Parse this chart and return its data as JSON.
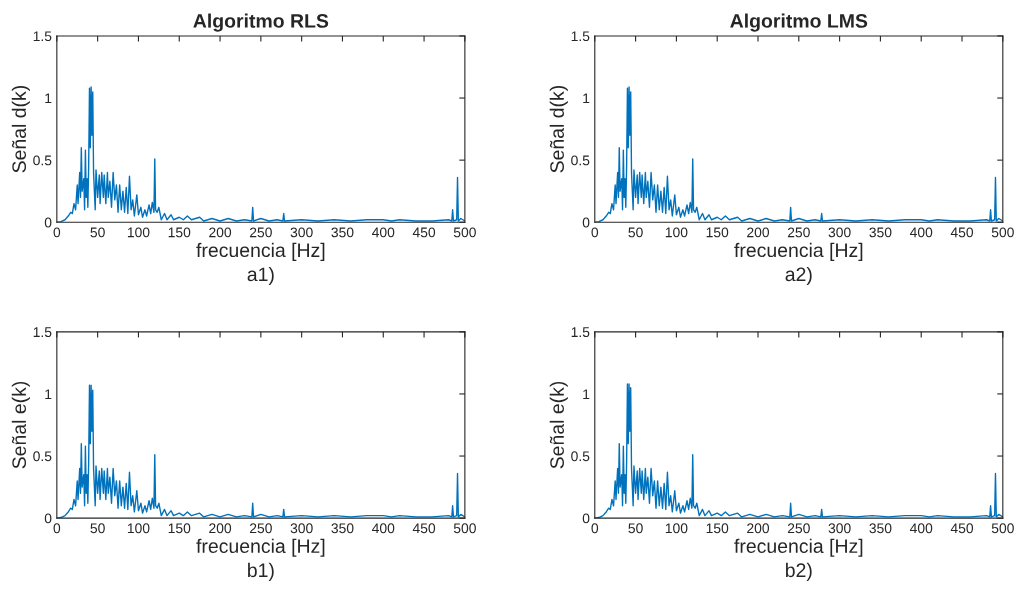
{
  "chart_data": [
    {
      "type": "line",
      "title": "Algoritmo RLS",
      "xlabel": "frecuencia [Hz]",
      "ylabel": "Señal d(k)",
      "annotations": [
        "a1)"
      ],
      "xlim": [
        0,
        500
      ],
      "ylim": [
        0,
        1.5
      ],
      "xticks": [
        0,
        50,
        100,
        150,
        200,
        250,
        300,
        350,
        400,
        450,
        500
      ],
      "yticks": [
        0,
        0.5,
        1,
        1.5
      ],
      "grid": false,
      "series": [
        {
          "color": "#0072bd",
          "x": [
            0,
            5,
            10,
            14,
            17,
            19,
            21,
            23,
            25,
            26,
            28,
            29,
            30,
            31,
            33,
            34,
            35,
            36,
            37,
            38,
            39,
            40,
            41,
            42,
            43,
            44,
            45,
            46,
            47,
            48,
            50,
            52,
            53,
            55,
            57,
            58,
            60,
            62,
            63,
            65,
            67,
            69,
            71,
            73,
            75,
            77,
            79,
            81,
            83,
            85,
            87,
            89,
            91,
            93,
            95,
            98,
            100,
            103,
            105,
            108,
            110,
            113,
            115,
            117,
            119,
            120,
            121,
            123,
            125,
            128,
            132,
            135,
            140,
            143,
            150,
            155,
            160,
            165,
            175,
            180,
            190,
            200,
            210,
            220,
            230,
            239,
            240,
            241,
            250,
            260,
            270,
            277,
            278,
            279,
            300,
            320,
            340,
            360,
            380,
            400,
            410,
            420,
            440,
            460,
            480,
            484,
            485,
            486,
            490,
            491,
            492,
            495,
            500
          ],
          "values": [
            0,
            0.005,
            0.02,
            0.05,
            0.08,
            0.07,
            0.15,
            0.1,
            0.3,
            0.15,
            0.4,
            0.2,
            0.6,
            0.25,
            0.35,
            0.1,
            0.58,
            0.2,
            0.35,
            0.12,
            0.45,
            1.08,
            0.6,
            1.09,
            0.7,
            1.05,
            0.4,
            0.25,
            0.1,
            0.42,
            0.2,
            0.38,
            0.15,
            0.4,
            0.2,
            0.38,
            0.15,
            0.4,
            0.2,
            0.33,
            0.12,
            0.4,
            0.18,
            0.3,
            0.08,
            0.3,
            0.1,
            0.25,
            0.08,
            0.28,
            0.07,
            0.37,
            0.1,
            0.18,
            0.05,
            0.22,
            0.06,
            0.12,
            0.04,
            0.1,
            0.05,
            0.14,
            0.07,
            0.16,
            0.08,
            0.51,
            0.1,
            0.08,
            0.12,
            0.02,
            0.07,
            0.02,
            0.06,
            0.02,
            0.04,
            0.02,
            0.05,
            0.02,
            0.04,
            0.01,
            0.03,
            0.01,
            0.03,
            0.01,
            0.02,
            0.01,
            0.12,
            0.01,
            0.03,
            0.01,
            0.02,
            0.01,
            0.07,
            0.01,
            0.02,
            0.01,
            0.02,
            0.01,
            0.02,
            0.02,
            0.01,
            0.02,
            0.01,
            0.01,
            0.02,
            0.01,
            0.1,
            0.01,
            0.02,
            0.36,
            0.01,
            0.03,
            0.01
          ]
        }
      ]
    },
    {
      "type": "line",
      "title": "Algoritmo LMS",
      "xlabel": "frecuencia [Hz]",
      "ylabel": "Señal d(k)",
      "annotations": [
        "a2)"
      ],
      "xlim": [
        0,
        500
      ],
      "ylim": [
        0,
        1.5
      ],
      "xticks": [
        0,
        50,
        100,
        150,
        200,
        250,
        300,
        350,
        400,
        450,
        500
      ],
      "yticks": [
        0,
        0.5,
        1,
        1.5
      ],
      "grid": false,
      "series": [
        {
          "color": "#0072bd",
          "x": [
            0,
            5,
            10,
            14,
            17,
            19,
            21,
            23,
            25,
            26,
            28,
            29,
            30,
            31,
            33,
            34,
            35,
            36,
            37,
            38,
            39,
            40,
            41,
            42,
            43,
            44,
            45,
            46,
            47,
            48,
            50,
            52,
            53,
            55,
            57,
            58,
            60,
            62,
            63,
            65,
            67,
            69,
            71,
            73,
            75,
            77,
            79,
            81,
            83,
            85,
            87,
            89,
            91,
            93,
            95,
            98,
            100,
            103,
            105,
            108,
            110,
            113,
            115,
            117,
            119,
            120,
            121,
            123,
            125,
            128,
            132,
            135,
            140,
            143,
            150,
            155,
            160,
            165,
            175,
            180,
            190,
            200,
            210,
            220,
            230,
            239,
            240,
            241,
            250,
            260,
            270,
            277,
            278,
            279,
            300,
            320,
            340,
            360,
            380,
            400,
            410,
            420,
            440,
            460,
            480,
            484,
            485,
            486,
            490,
            491,
            492,
            495,
            500
          ],
          "values": [
            0,
            0.005,
            0.02,
            0.05,
            0.08,
            0.07,
            0.15,
            0.1,
            0.3,
            0.15,
            0.4,
            0.2,
            0.6,
            0.25,
            0.35,
            0.1,
            0.58,
            0.2,
            0.35,
            0.12,
            0.45,
            1.08,
            0.6,
            1.09,
            0.7,
            1.05,
            0.4,
            0.25,
            0.1,
            0.42,
            0.2,
            0.38,
            0.15,
            0.4,
            0.2,
            0.38,
            0.15,
            0.4,
            0.2,
            0.33,
            0.12,
            0.4,
            0.18,
            0.3,
            0.08,
            0.3,
            0.1,
            0.25,
            0.08,
            0.28,
            0.07,
            0.37,
            0.1,
            0.18,
            0.05,
            0.22,
            0.06,
            0.12,
            0.04,
            0.1,
            0.05,
            0.14,
            0.07,
            0.16,
            0.08,
            0.51,
            0.1,
            0.08,
            0.12,
            0.02,
            0.07,
            0.02,
            0.06,
            0.02,
            0.04,
            0.02,
            0.05,
            0.02,
            0.04,
            0.01,
            0.03,
            0.01,
            0.03,
            0.01,
            0.02,
            0.01,
            0.12,
            0.01,
            0.03,
            0.01,
            0.02,
            0.01,
            0.07,
            0.01,
            0.02,
            0.01,
            0.02,
            0.01,
            0.02,
            0.02,
            0.01,
            0.02,
            0.01,
            0.01,
            0.02,
            0.01,
            0.1,
            0.01,
            0.02,
            0.36,
            0.01,
            0.03,
            0.01
          ]
        }
      ]
    },
    {
      "type": "line",
      "xlabel": "frecuencia [Hz]",
      "ylabel": "Señal e(k)",
      "annotations": [
        "b1)"
      ],
      "xlim": [
        0,
        500
      ],
      "ylim": [
        0,
        1.5
      ],
      "xticks": [
        0,
        50,
        100,
        150,
        200,
        250,
        300,
        350,
        400,
        450,
        500
      ],
      "yticks": [
        0,
        0.5,
        1,
        1.5
      ],
      "grid": false,
      "series": [
        {
          "color": "#0072bd",
          "x": [
            0,
            5,
            10,
            14,
            17,
            19,
            21,
            23,
            25,
            26,
            28,
            29,
            30,
            31,
            33,
            34,
            35,
            36,
            37,
            38,
            39,
            40,
            41,
            42,
            43,
            44,
            45,
            46,
            47,
            48,
            50,
            52,
            53,
            55,
            57,
            58,
            60,
            62,
            63,
            65,
            67,
            69,
            71,
            73,
            75,
            77,
            79,
            81,
            83,
            85,
            87,
            89,
            91,
            93,
            95,
            98,
            100,
            103,
            105,
            108,
            110,
            113,
            115,
            117,
            119,
            120,
            121,
            123,
            125,
            128,
            132,
            135,
            140,
            143,
            150,
            155,
            160,
            165,
            175,
            180,
            190,
            200,
            210,
            220,
            230,
            239,
            240,
            241,
            250,
            260,
            270,
            277,
            278,
            279,
            300,
            320,
            340,
            360,
            380,
            400,
            410,
            420,
            440,
            460,
            480,
            484,
            485,
            486,
            490,
            491,
            492,
            495,
            500
          ],
          "values": [
            0,
            0.005,
            0.02,
            0.05,
            0.08,
            0.07,
            0.15,
            0.1,
            0.3,
            0.15,
            0.4,
            0.2,
            0.6,
            0.25,
            0.35,
            0.1,
            0.58,
            0.2,
            0.35,
            0.12,
            0.45,
            1.07,
            0.6,
            1.07,
            0.7,
            1.03,
            0.4,
            0.25,
            0.1,
            0.42,
            0.2,
            0.38,
            0.15,
            0.4,
            0.2,
            0.38,
            0.15,
            0.4,
            0.2,
            0.33,
            0.12,
            0.4,
            0.18,
            0.3,
            0.08,
            0.3,
            0.1,
            0.25,
            0.08,
            0.28,
            0.07,
            0.37,
            0.1,
            0.18,
            0.05,
            0.22,
            0.06,
            0.12,
            0.04,
            0.1,
            0.05,
            0.14,
            0.07,
            0.16,
            0.08,
            0.51,
            0.1,
            0.08,
            0.12,
            0.02,
            0.07,
            0.02,
            0.06,
            0.02,
            0.04,
            0.02,
            0.05,
            0.02,
            0.04,
            0.01,
            0.03,
            0.01,
            0.03,
            0.01,
            0.02,
            0.01,
            0.12,
            0.01,
            0.03,
            0.01,
            0.02,
            0.01,
            0.07,
            0.01,
            0.02,
            0.01,
            0.02,
            0.01,
            0.02,
            0.02,
            0.01,
            0.02,
            0.01,
            0.01,
            0.02,
            0.01,
            0.1,
            0.01,
            0.02,
            0.36,
            0.01,
            0.03,
            0.01
          ]
        }
      ]
    },
    {
      "type": "line",
      "xlabel": "frecuencia [Hz]",
      "ylabel": "Señal e(k)",
      "annotations": [
        "b2)"
      ],
      "xlim": [
        0,
        500
      ],
      "ylim": [
        0,
        1.5
      ],
      "xticks": [
        0,
        50,
        100,
        150,
        200,
        250,
        300,
        350,
        400,
        450,
        500
      ],
      "yticks": [
        0,
        0.5,
        1,
        1.5
      ],
      "grid": false,
      "series": [
        {
          "color": "#0072bd",
          "x": [
            0,
            5,
            10,
            14,
            17,
            19,
            21,
            23,
            25,
            26,
            28,
            29,
            30,
            31,
            33,
            34,
            35,
            36,
            37,
            38,
            39,
            40,
            41,
            42,
            43,
            44,
            45,
            46,
            47,
            48,
            50,
            52,
            53,
            55,
            57,
            58,
            60,
            62,
            63,
            65,
            67,
            69,
            71,
            73,
            75,
            77,
            79,
            81,
            83,
            85,
            87,
            89,
            91,
            93,
            95,
            98,
            100,
            103,
            105,
            108,
            110,
            113,
            115,
            117,
            119,
            120,
            121,
            123,
            125,
            128,
            132,
            135,
            140,
            143,
            150,
            155,
            160,
            165,
            175,
            180,
            190,
            200,
            210,
            220,
            230,
            239,
            240,
            241,
            250,
            260,
            270,
            277,
            278,
            279,
            300,
            320,
            340,
            360,
            380,
            400,
            410,
            420,
            440,
            460,
            480,
            484,
            485,
            486,
            490,
            491,
            492,
            495,
            500
          ],
          "values": [
            0,
            0.005,
            0.02,
            0.05,
            0.08,
            0.07,
            0.15,
            0.1,
            0.3,
            0.15,
            0.4,
            0.2,
            0.6,
            0.25,
            0.35,
            0.1,
            0.58,
            0.2,
            0.35,
            0.12,
            0.45,
            1.08,
            0.6,
            1.08,
            0.7,
            1.05,
            0.4,
            0.25,
            0.1,
            0.42,
            0.2,
            0.38,
            0.15,
            0.4,
            0.2,
            0.38,
            0.15,
            0.4,
            0.2,
            0.33,
            0.12,
            0.4,
            0.18,
            0.3,
            0.08,
            0.3,
            0.1,
            0.25,
            0.08,
            0.28,
            0.07,
            0.37,
            0.1,
            0.18,
            0.05,
            0.22,
            0.06,
            0.12,
            0.04,
            0.1,
            0.05,
            0.14,
            0.07,
            0.16,
            0.08,
            0.51,
            0.1,
            0.08,
            0.12,
            0.02,
            0.07,
            0.02,
            0.06,
            0.02,
            0.04,
            0.02,
            0.05,
            0.02,
            0.04,
            0.01,
            0.03,
            0.01,
            0.03,
            0.01,
            0.02,
            0.01,
            0.12,
            0.01,
            0.03,
            0.01,
            0.02,
            0.01,
            0.07,
            0.01,
            0.02,
            0.01,
            0.02,
            0.01,
            0.02,
            0.02,
            0.01,
            0.02,
            0.01,
            0.01,
            0.02,
            0.01,
            0.1,
            0.01,
            0.02,
            0.36,
            0.01,
            0.03,
            0.01
          ]
        }
      ]
    }
  ]
}
